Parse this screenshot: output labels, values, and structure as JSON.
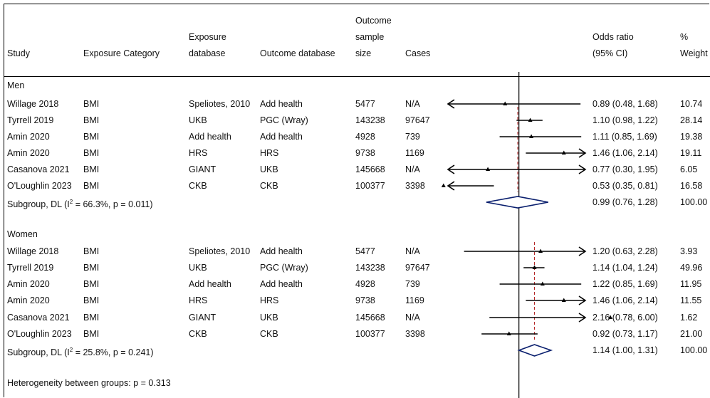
{
  "headers": {
    "study": "Study",
    "exposure_category": "Exposure Category",
    "exposure_database": [
      "Exposure",
      "database"
    ],
    "outcome_database": "Outcome database",
    "outcome_sample_size": [
      "Outcome",
      "sample",
      "size"
    ],
    "cases": "Cases",
    "or_ci": [
      "Odds ratio",
      "(95% CI)"
    ],
    "weight": [
      "%",
      "Weight"
    ]
  },
  "groups": [
    {
      "label": "Men",
      "rows": [
        {
          "study": "Willage 2018",
          "exposure": "BMI",
          "exp_db": "Speliotes, 2010",
          "out_db": "Add health",
          "n": "5477",
          "cases": "N/A",
          "or_text": "0.89 (0.48, 1.68)",
          "weight": "10.74"
        },
        {
          "study": "Tyrrell 2019",
          "exposure": "BMI",
          "exp_db": "UKB",
          "out_db": "PGC (Wray)",
          "n": "143238",
          "cases": "97647",
          "or_text": "1.10 (0.98, 1.22)",
          "weight": "28.14"
        },
        {
          "study": "Amin 2020",
          "exposure": "BMI",
          "exp_db": "Add health",
          "out_db": "Add health",
          "n": "4928",
          "cases": "739",
          "or_text": "1.11 (0.85, 1.69)",
          "weight": "19.38"
        },
        {
          "study": "Amin 2020",
          "exposure": "BMI",
          "exp_db": "HRS",
          "out_db": "HRS",
          "n": "9738",
          "cases": "1169",
          "or_text": "1.46 (1.06, 2.14)",
          "weight": "19.11"
        },
        {
          "study": "Casanova 2021",
          "exposure": "BMI",
          "exp_db": "GIANT",
          "out_db": "UKB",
          "n": "145668",
          "cases": "N/A",
          "or_text": "0.77 (0.30, 1.95)",
          "weight": "6.05"
        },
        {
          "study": "O'Loughlin 2023",
          "exposure": "BMI",
          "exp_db": "CKB",
          "out_db": "CKB",
          "n": "100377",
          "cases": "3398",
          "or_text": "0.53 (0.35, 0.81)",
          "weight": "16.58"
        }
      ],
      "subgroup": {
        "label_prefix": "Subgroup, DL (I",
        "label_sup": "2",
        "label_suffix": " = 66.3%, p = 0.011)",
        "or_text": "0.99 (0.76, 1.28)",
        "weight": "100.00"
      }
    },
    {
      "label": "Women",
      "rows": [
        {
          "study": "Willage 2018",
          "exposure": "BMI",
          "exp_db": "Speliotes, 2010",
          "out_db": "Add health",
          "n": "5477",
          "cases": "N/A",
          "or_text": "1.20 (0.63, 2.28)",
          "weight": "3.93"
        },
        {
          "study": "Tyrrell 2019",
          "exposure": "BMI",
          "exp_db": "UKB",
          "out_db": "PGC (Wray)",
          "n": "143238",
          "cases": "97647",
          "or_text": "1.14 (1.04, 1.24)",
          "weight": "49.96"
        },
        {
          "study": "Amin 2020",
          "exposure": "BMI",
          "exp_db": "Add health",
          "out_db": "Add health",
          "n": "4928",
          "cases": "739",
          "or_text": "1.22 (0.85, 1.69)",
          "weight": "11.95"
        },
        {
          "study": "Amin 2020",
          "exposure": "BMI",
          "exp_db": "HRS",
          "out_db": "HRS",
          "n": "9738",
          "cases": "1169",
          "or_text": "1.46 (1.06, 2.14)",
          "weight": "11.55"
        },
        {
          "study": "Casanova 2021",
          "exposure": "BMI",
          "exp_db": "GIANT",
          "out_db": "UKB",
          "n": "145668",
          "cases": "N/A",
          "or_text": "2.16 (0.78, 6.00)",
          "weight": "1.62"
        },
        {
          "study": "O'Loughlin 2023",
          "exposure": "BMI",
          "exp_db": "CKB",
          "out_db": "CKB",
          "n": "100377",
          "cases": "3398",
          "or_text": "0.92 (0.73, 1.17)",
          "weight": "21.00"
        }
      ],
      "subgroup": {
        "label_prefix": "Subgroup, DL (I",
        "label_sup": "2",
        "label_suffix": " = 25.8%, p = 0.241)",
        "or_text": "1.14 (1.00, 1.31)",
        "weight": "100.00"
      }
    }
  ],
  "footer": "Heterogeneity between groups: p = 0.313",
  "chart_data": {
    "type": "forest",
    "xscale": "log",
    "null_value": 1,
    "xlim": [
      0.55,
      1.75
    ],
    "colors": {
      "estimate": "#000000",
      "pooled_diamond": "#0a1f6e",
      "pooled_line": "#b22222"
    },
    "series": [
      {
        "name": "Men",
        "points": [
          {
            "or": 0.89,
            "lo": 0.48,
            "hi": 1.68,
            "weight": 10.74
          },
          {
            "or": 1.1,
            "lo": 0.98,
            "hi": 1.22,
            "weight": 28.14
          },
          {
            "or": 1.11,
            "lo": 0.85,
            "hi": 1.69,
            "weight": 19.38
          },
          {
            "or": 1.46,
            "lo": 1.06,
            "hi": 2.14,
            "weight": 19.11
          },
          {
            "or": 0.77,
            "lo": 0.3,
            "hi": 1.95,
            "weight": 6.05
          },
          {
            "or": 0.53,
            "lo": 0.35,
            "hi": 0.81,
            "weight": 16.58
          }
        ],
        "pooled": {
          "or": 0.99,
          "lo": 0.76,
          "hi": 1.28
        }
      },
      {
        "name": "Women",
        "points": [
          {
            "or": 1.2,
            "lo": 0.63,
            "hi": 2.28,
            "weight": 3.93
          },
          {
            "or": 1.14,
            "lo": 1.04,
            "hi": 1.24,
            "weight": 49.96
          },
          {
            "or": 1.22,
            "lo": 0.85,
            "hi": 1.69,
            "weight": 11.95
          },
          {
            "or": 1.46,
            "lo": 1.06,
            "hi": 2.14,
            "weight": 11.55
          },
          {
            "or": 2.16,
            "lo": 0.78,
            "hi": 6.0,
            "weight": 1.62
          },
          {
            "or": 0.92,
            "lo": 0.73,
            "hi": 1.17,
            "weight": 21.0
          }
        ],
        "pooled": {
          "or": 1.14,
          "lo": 1.0,
          "hi": 1.31
        }
      }
    ]
  }
}
